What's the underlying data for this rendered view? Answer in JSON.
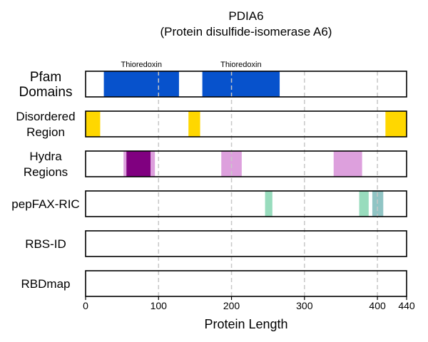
{
  "chart_data": {
    "type": "bar",
    "title": "PDIA6",
    "subtitle": "(Protein disulfide-isomerase A6)",
    "xlabel": "Protein Length",
    "xlim": [
      0,
      440
    ],
    "xticks": [
      0,
      100,
      200,
      300,
      400,
      440
    ],
    "grid_x": [
      100,
      200,
      300,
      400
    ],
    "tracks": [
      {
        "label": [
          "Pfam",
          "Domains"
        ],
        "segments": [
          {
            "start": 25,
            "end": 128,
            "color": "#0752cc",
            "label": "Thioredoxin"
          },
          {
            "start": 160,
            "end": 266,
            "color": "#0752cc",
            "label": "Thioredoxin"
          }
        ]
      },
      {
        "label": [
          "Disordered",
          "Region"
        ],
        "segments": [
          {
            "start": 0,
            "end": 20,
            "color": "#ffd700"
          },
          {
            "start": 141,
            "end": 157,
            "color": "#ffd700"
          },
          {
            "start": 411,
            "end": 440,
            "color": "#ffd700"
          }
        ]
      },
      {
        "label": [
          "Hydra",
          "Regions"
        ],
        "segments": [
          {
            "start": 52,
            "end": 95,
            "color": "#dda0dd"
          },
          {
            "start": 56,
            "end": 89,
            "color": "#800080"
          },
          {
            "start": 186,
            "end": 214,
            "color": "#dda0dd"
          },
          {
            "start": 340,
            "end": 379,
            "color": "#dda0dd"
          }
        ]
      },
      {
        "label": [
          "pepFAX-RIC"
        ],
        "segments": [
          {
            "start": 246,
            "end": 256,
            "color": "#98dcbd"
          },
          {
            "start": 375,
            "end": 388,
            "color": "#98dcbd"
          },
          {
            "start": 393,
            "end": 408,
            "color": "#90c4c4"
          }
        ]
      },
      {
        "label": [
          "RBS-ID"
        ],
        "segments": []
      },
      {
        "label": [
          "RBDmap"
        ],
        "segments": []
      }
    ]
  }
}
